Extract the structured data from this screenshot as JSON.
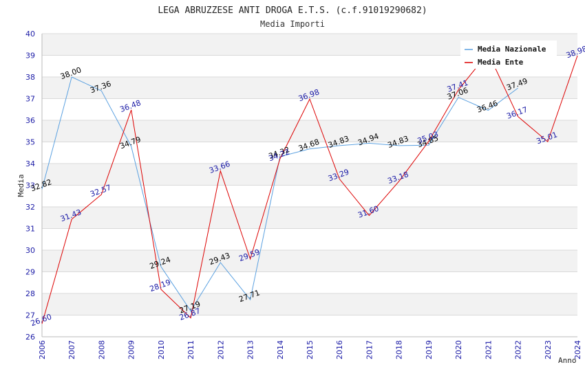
{
  "chart_data": {
    "type": "line",
    "title": "LEGA ABRUZZESE ANTI DROGA E.T.S. (c.f.91019290682)",
    "subtitle": "Media Importi",
    "xlabel": "Anno",
    "ylabel": "Media",
    "ylim": [
      26,
      40
    ],
    "yticks": [
      26,
      27,
      28,
      29,
      30,
      31,
      32,
      33,
      34,
      35,
      36,
      37,
      38,
      39,
      40
    ],
    "categories": [
      "2006",
      "2007",
      "2008",
      "2009",
      "2010",
      "2011",
      "2012",
      "2013",
      "2014",
      "2015",
      "2016",
      "2017",
      "2018",
      "2019",
      "2020",
      "2021",
      "2022",
      "2023",
      "2024"
    ],
    "grid": true,
    "legend_position": "top-right",
    "series": [
      {
        "name": "Media Nazionale",
        "color": "#5aa0e0",
        "label_color": "#000000",
        "values": [
          32.82,
          38.0,
          37.36,
          34.79,
          29.24,
          27.19,
          29.43,
          27.71,
          34.32,
          34.68,
          34.83,
          34.94,
          34.83,
          34.85,
          37.06,
          36.46,
          37.49,
          null,
          null
        ]
      },
      {
        "name": "Media Ente",
        "color": "#dd0000",
        "label_color": "#1a1aa6",
        "values": [
          26.6,
          31.43,
          32.57,
          36.48,
          28.19,
          26.87,
          33.66,
          29.59,
          34.22,
          36.98,
          33.29,
          31.6,
          33.18,
          35.03,
          37.41,
          39.11,
          36.17,
          35.01,
          38.98
        ]
      }
    ]
  }
}
